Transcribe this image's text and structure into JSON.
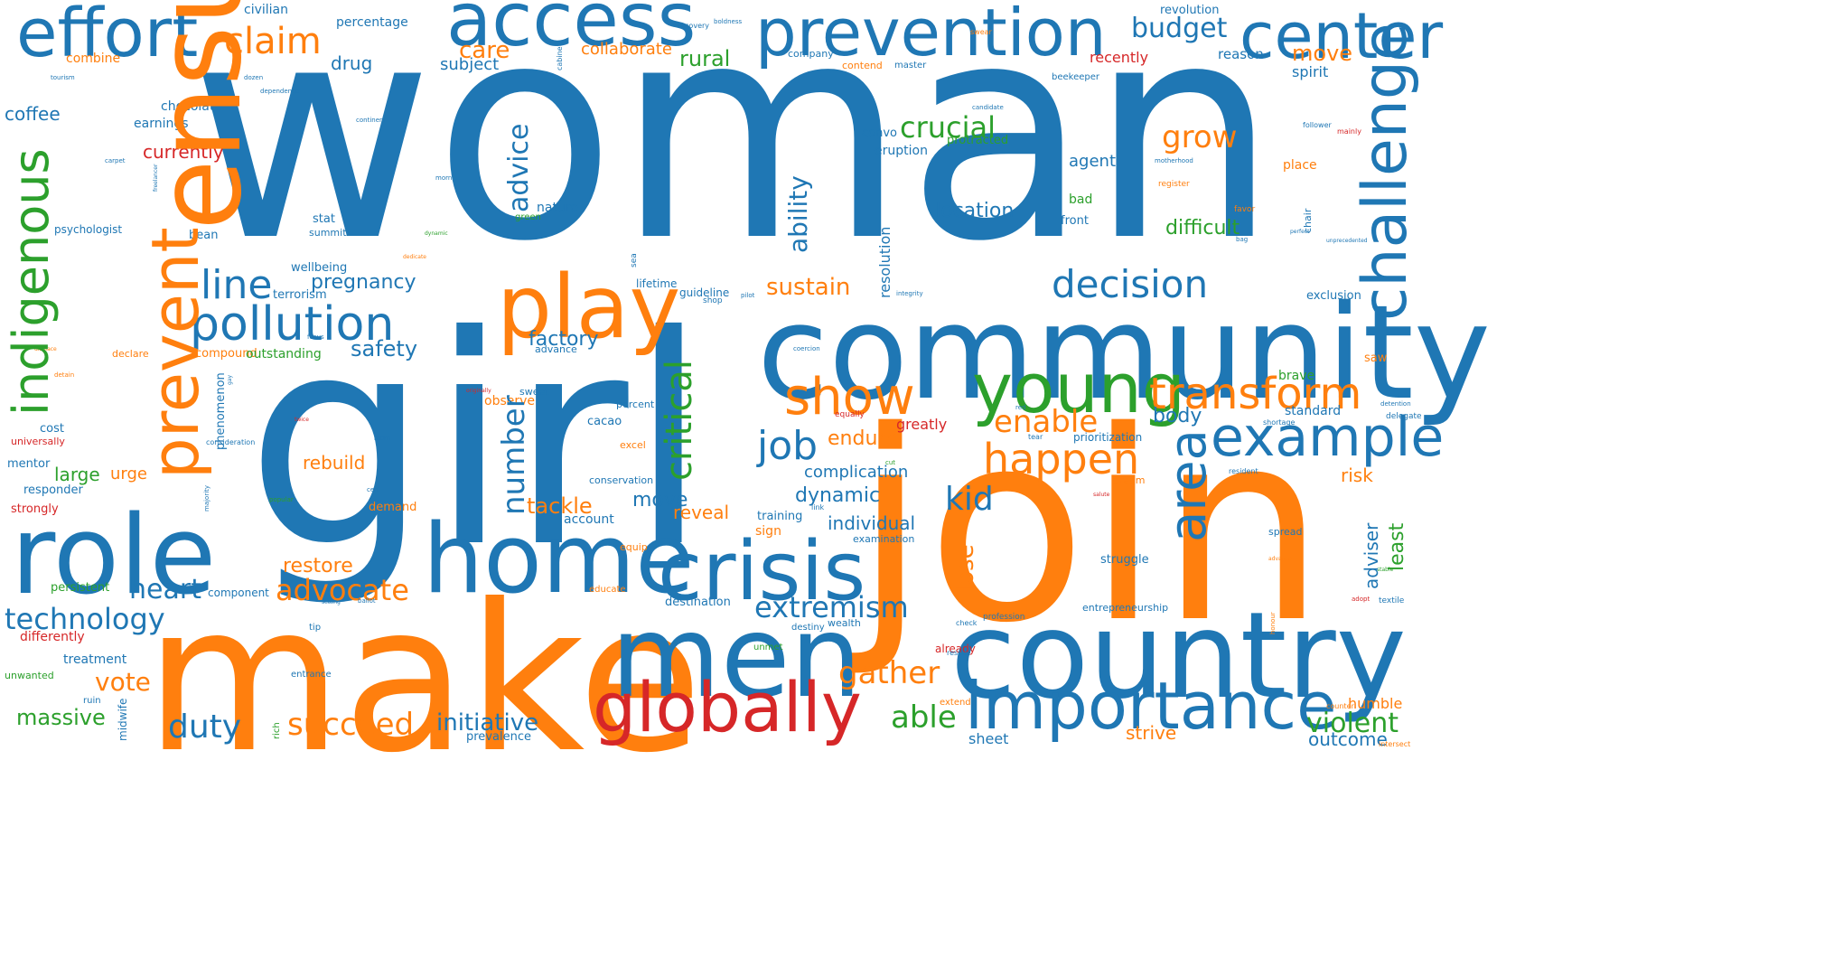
{
  "colors": {
    "blue": "#1f77b4",
    "orange": "#ff7f0e",
    "green": "#2ca02c",
    "red": "#d62728"
  },
  "words": [
    {
      "text": "woman",
      "color": "blue"
    },
    {
      "text": "girl",
      "color": "blue"
    },
    {
      "text": "join",
      "color": "orange"
    },
    {
      "text": "make",
      "color": "orange"
    },
    {
      "text": "community",
      "color": "blue"
    },
    {
      "text": "ensure",
      "color": "orange"
    },
    {
      "text": "country",
      "color": "blue"
    },
    {
      "text": "men",
      "color": "blue"
    },
    {
      "text": "home",
      "color": "blue"
    },
    {
      "text": "role",
      "color": "blue"
    },
    {
      "text": "access",
      "color": "blue"
    },
    {
      "text": "prevention",
      "color": "blue"
    },
    {
      "text": "play",
      "color": "orange"
    },
    {
      "text": "crisis",
      "color": "blue"
    },
    {
      "text": "importance",
      "color": "blue"
    },
    {
      "text": "globally",
      "color": "red"
    },
    {
      "text": "effort",
      "color": "blue"
    },
    {
      "text": "prevent",
      "color": "orange"
    },
    {
      "text": "center",
      "color": "blue"
    },
    {
      "text": "challenge",
      "color": "blue"
    },
    {
      "text": "young",
      "color": "green"
    },
    {
      "text": "example",
      "color": "blue"
    },
    {
      "text": "transform",
      "color": "orange"
    },
    {
      "text": "area",
      "color": "blue"
    },
    {
      "text": "indigenous",
      "color": "green"
    },
    {
      "text": "pollution",
      "color": "blue"
    },
    {
      "text": "show",
      "color": "orange"
    },
    {
      "text": "decision",
      "color": "blue"
    },
    {
      "text": "happen",
      "color": "orange"
    },
    {
      "text": "critical",
      "color": "green"
    },
    {
      "text": "technology",
      "color": "blue"
    },
    {
      "text": "extremism",
      "color": "blue"
    },
    {
      "text": "claim",
      "color": "orange"
    },
    {
      "text": "line",
      "color": "blue"
    },
    {
      "text": "job",
      "color": "blue"
    },
    {
      "text": "number",
      "color": "blue"
    },
    {
      "text": "advocate",
      "color": "orange"
    },
    {
      "text": "enable",
      "color": "orange"
    },
    {
      "text": "gather",
      "color": "orange"
    },
    {
      "text": "duty",
      "color": "blue"
    },
    {
      "text": "succeed",
      "color": "orange"
    },
    {
      "text": "initiative",
      "color": "blue"
    },
    {
      "text": "violent",
      "color": "green"
    },
    {
      "text": "able",
      "color": "green"
    },
    {
      "text": "budget",
      "color": "blue"
    },
    {
      "text": "grow",
      "color": "orange"
    },
    {
      "text": "crucial",
      "color": "green"
    },
    {
      "text": "advice",
      "color": "blue"
    },
    {
      "text": "ability",
      "color": "blue"
    },
    {
      "text": "heart",
      "color": "blue"
    },
    {
      "text": "kid",
      "color": "blue"
    },
    {
      "text": "massive",
      "color": "green"
    },
    {
      "text": "vote",
      "color": "orange"
    },
    {
      "text": "sustain",
      "color": "orange"
    },
    {
      "text": "safety",
      "color": "blue"
    },
    {
      "text": "endure",
      "color": "orange"
    },
    {
      "text": "tackle",
      "color": "orange"
    },
    {
      "text": "lose",
      "color": "orange"
    },
    {
      "text": "body",
      "color": "blue"
    },
    {
      "text": "outcome",
      "color": "blue"
    },
    {
      "text": "care",
      "color": "orange"
    },
    {
      "text": "rural",
      "color": "green"
    },
    {
      "text": "move",
      "color": "orange"
    },
    {
      "text": "move",
      "color": "blue"
    },
    {
      "text": "location",
      "color": "blue"
    },
    {
      "text": "difficult",
      "color": "green"
    },
    {
      "text": "pregnancy",
      "color": "blue"
    },
    {
      "text": "restore",
      "color": "orange"
    },
    {
      "text": "dynamic",
      "color": "blue"
    },
    {
      "text": "individual",
      "color": "blue"
    },
    {
      "text": "factory",
      "color": "blue"
    },
    {
      "text": "rebuild",
      "color": "orange"
    },
    {
      "text": "large",
      "color": "green"
    },
    {
      "text": "coffee",
      "color": "blue"
    },
    {
      "text": "drug",
      "color": "blue"
    },
    {
      "text": "currently",
      "color": "red"
    },
    {
      "text": "subject",
      "color": "blue"
    },
    {
      "text": "collaborate",
      "color": "orange"
    },
    {
      "text": "reveal",
      "color": "orange"
    },
    {
      "text": "urge",
      "color": "orange"
    },
    {
      "text": "agent",
      "color": "blue"
    },
    {
      "text": "complication",
      "color": "blue"
    },
    {
      "text": "greatly",
      "color": "red"
    },
    {
      "text": "risk",
      "color": "orange"
    },
    {
      "text": "least",
      "color": "green"
    },
    {
      "text": "adviser",
      "color": "blue"
    },
    {
      "text": "humble",
      "color": "orange"
    },
    {
      "text": "strive",
      "color": "orange"
    },
    {
      "text": "sheet",
      "color": "blue"
    },
    {
      "text": "recently",
      "color": "red"
    },
    {
      "text": "spirit",
      "color": "blue"
    },
    {
      "text": "place",
      "color": "orange"
    },
    {
      "text": "exclusion",
      "color": "blue"
    },
    {
      "text": "standard",
      "color": "blue"
    },
    {
      "text": "brave",
      "color": "green"
    },
    {
      "text": "saw",
      "color": "orange"
    },
    {
      "text": "reason",
      "color": "blue"
    },
    {
      "text": "revolution",
      "color": "blue"
    },
    {
      "text": "civilian",
      "color": "blue"
    },
    {
      "text": "percentage",
      "color": "blue"
    },
    {
      "text": "combine",
      "color": "orange"
    },
    {
      "text": "chocolate",
      "color": "blue"
    },
    {
      "text": "earnings",
      "color": "blue"
    },
    {
      "text": "psychologist",
      "color": "blue"
    },
    {
      "text": "bean",
      "color": "blue"
    },
    {
      "text": "stat",
      "color": "blue"
    },
    {
      "text": "summit",
      "color": "blue"
    },
    {
      "text": "nature",
      "color": "blue"
    },
    {
      "text": "green",
      "color": "green"
    },
    {
      "text": "wellbeing",
      "color": "blue"
    },
    {
      "text": "terrorism",
      "color": "blue"
    },
    {
      "text": "compound",
      "color": "orange"
    },
    {
      "text": "outstanding",
      "color": "green"
    },
    {
      "text": "declare",
      "color": "orange"
    },
    {
      "text": "lifetime",
      "color": "blue"
    },
    {
      "text": "guideline",
      "color": "blue"
    },
    {
      "text": "advance",
      "color": "blue"
    },
    {
      "text": "resolution",
      "color": "blue"
    },
    {
      "text": "convo",
      "color": "blue"
    },
    {
      "text": "eruption",
      "color": "blue"
    },
    {
      "text": "protracted",
      "color": "green"
    },
    {
      "text": "bad",
      "color": "green"
    },
    {
      "text": "front",
      "color": "blue"
    },
    {
      "text": "company",
      "color": "blue"
    },
    {
      "text": "contend",
      "color": "orange"
    },
    {
      "text": "master",
      "color": "blue"
    },
    {
      "text": "beekeeper",
      "color": "blue"
    },
    {
      "text": "phenomenon",
      "color": "blue"
    },
    {
      "text": "sweet",
      "color": "blue"
    },
    {
      "text": "observe",
      "color": "orange"
    },
    {
      "text": "cacao",
      "color": "blue"
    },
    {
      "text": "percent",
      "color": "blue"
    },
    {
      "text": "excel",
      "color": "orange"
    },
    {
      "text": "prioritization",
      "color": "blue"
    },
    {
      "text": "cost",
      "color": "blue"
    },
    {
      "text": "universally",
      "color": "red"
    },
    {
      "text": "mentor",
      "color": "blue"
    },
    {
      "text": "responder",
      "color": "blue"
    },
    {
      "text": "strongly",
      "color": "red"
    },
    {
      "text": "demand",
      "color": "orange"
    },
    {
      "text": "conservation",
      "color": "blue"
    },
    {
      "text": "training",
      "color": "blue"
    },
    {
      "text": "sign",
      "color": "orange"
    },
    {
      "text": "examination",
      "color": "blue"
    },
    {
      "text": "struggle",
      "color": "blue"
    },
    {
      "text": "spread",
      "color": "blue"
    },
    {
      "text": "dream",
      "color": "orange"
    },
    {
      "text": "persistent",
      "color": "green"
    },
    {
      "text": "component",
      "color": "blue"
    },
    {
      "text": "account",
      "color": "blue"
    },
    {
      "text": "destination",
      "color": "blue"
    },
    {
      "text": "educate",
      "color": "orange"
    },
    {
      "text": "equip",
      "color": "orange"
    },
    {
      "text": "entrepreneurship",
      "color": "blue"
    },
    {
      "text": "wealth",
      "color": "blue"
    },
    {
      "text": "destiny",
      "color": "blue"
    },
    {
      "text": "unmet",
      "color": "green"
    },
    {
      "text": "already",
      "color": "red"
    },
    {
      "text": "differently",
      "color": "red"
    },
    {
      "text": "treatment",
      "color": "blue"
    },
    {
      "text": "unwanted",
      "color": "green"
    },
    {
      "text": "midwife",
      "color": "blue"
    },
    {
      "text": "ruin",
      "color": "blue"
    },
    {
      "text": "rich",
      "color": "green"
    },
    {
      "text": "entrance",
      "color": "blue"
    },
    {
      "text": "tip",
      "color": "blue"
    },
    {
      "text": "prevalence",
      "color": "blue"
    },
    {
      "text": "extend",
      "color": "orange"
    },
    {
      "text": "profession",
      "color": "blue"
    },
    {
      "text": "check",
      "color": "blue"
    },
    {
      "text": "rescue",
      "color": "blue"
    },
    {
      "text": "counter",
      "color": "orange"
    },
    {
      "text": "intersect",
      "color": "orange"
    },
    {
      "text": "textile",
      "color": "blue"
    },
    {
      "text": "adopt",
      "color": "red"
    },
    {
      "text": "resident",
      "color": "blue"
    },
    {
      "text": "delegate",
      "color": "blue"
    },
    {
      "text": "detention",
      "color": "blue"
    },
    {
      "text": "shortage",
      "color": "blue"
    },
    {
      "text": "tear",
      "color": "blue"
    },
    {
      "text": "red",
      "color": "blue"
    },
    {
      "text": "equally",
      "color": "red"
    },
    {
      "text": "cut",
      "color": "green"
    },
    {
      "text": "link",
      "color": "blue"
    },
    {
      "text": "shop",
      "color": "blue"
    },
    {
      "text": "pilot",
      "color": "blue"
    },
    {
      "text": "integrity",
      "color": "blue"
    },
    {
      "text": "coercion",
      "color": "blue"
    },
    {
      "text": "focus",
      "color": "blue"
    },
    {
      "text": "recovery",
      "color": "blue"
    },
    {
      "text": "boldness",
      "color": "blue"
    },
    {
      "text": "cabinet",
      "color": "blue"
    },
    {
      "text": "swear",
      "color": "orange"
    },
    {
      "text": "candidate",
      "color": "blue"
    },
    {
      "text": "follower",
      "color": "blue"
    },
    {
      "text": "mainly",
      "color": "red"
    },
    {
      "text": "motherhood",
      "color": "blue"
    },
    {
      "text": "register",
      "color": "orange"
    },
    {
      "text": "favor",
      "color": "orange"
    },
    {
      "text": "chair",
      "color": "blue"
    },
    {
      "text": "unprecedented",
      "color": "blue"
    },
    {
      "text": "bag",
      "color": "blue"
    },
    {
      "text": "perfect",
      "color": "blue"
    },
    {
      "text": "tourism",
      "color": "blue"
    },
    {
      "text": "dozen",
      "color": "blue"
    },
    {
      "text": "dependence",
      "color": "blue"
    },
    {
      "text": "continent",
      "color": "blue"
    },
    {
      "text": "carpet",
      "color": "blue"
    },
    {
      "text": "freelancer",
      "color": "blue"
    },
    {
      "text": "morn",
      "color": "blue"
    },
    {
      "text": "dynamic",
      "color": "green"
    },
    {
      "text": "dedicate",
      "color": "orange"
    },
    {
      "text": "sea",
      "color": "blue"
    },
    {
      "text": "displace",
      "color": "orange"
    },
    {
      "text": "detain",
      "color": "orange"
    },
    {
      "text": "originally",
      "color": "red"
    },
    {
      "text": "twice",
      "color": "red"
    },
    {
      "text": "gay",
      "color": "blue"
    },
    {
      "text": "consideration",
      "color": "blue"
    },
    {
      "text": "mom",
      "color": "blue"
    },
    {
      "text": "majority",
      "color": "blue"
    },
    {
      "text": "popular",
      "color": "green"
    },
    {
      "text": "cent",
      "color": "blue"
    },
    {
      "text": "setting",
      "color": "blue"
    },
    {
      "text": "ballot",
      "color": "blue"
    },
    {
      "text": "salute",
      "color": "red"
    },
    {
      "text": "honour",
      "color": "orange"
    },
    {
      "text": "advance",
      "color": "orange"
    },
    {
      "text": "stable",
      "color": "green"
    },
    {
      "text": "issue",
      "color": "orange"
    }
  ]
}
